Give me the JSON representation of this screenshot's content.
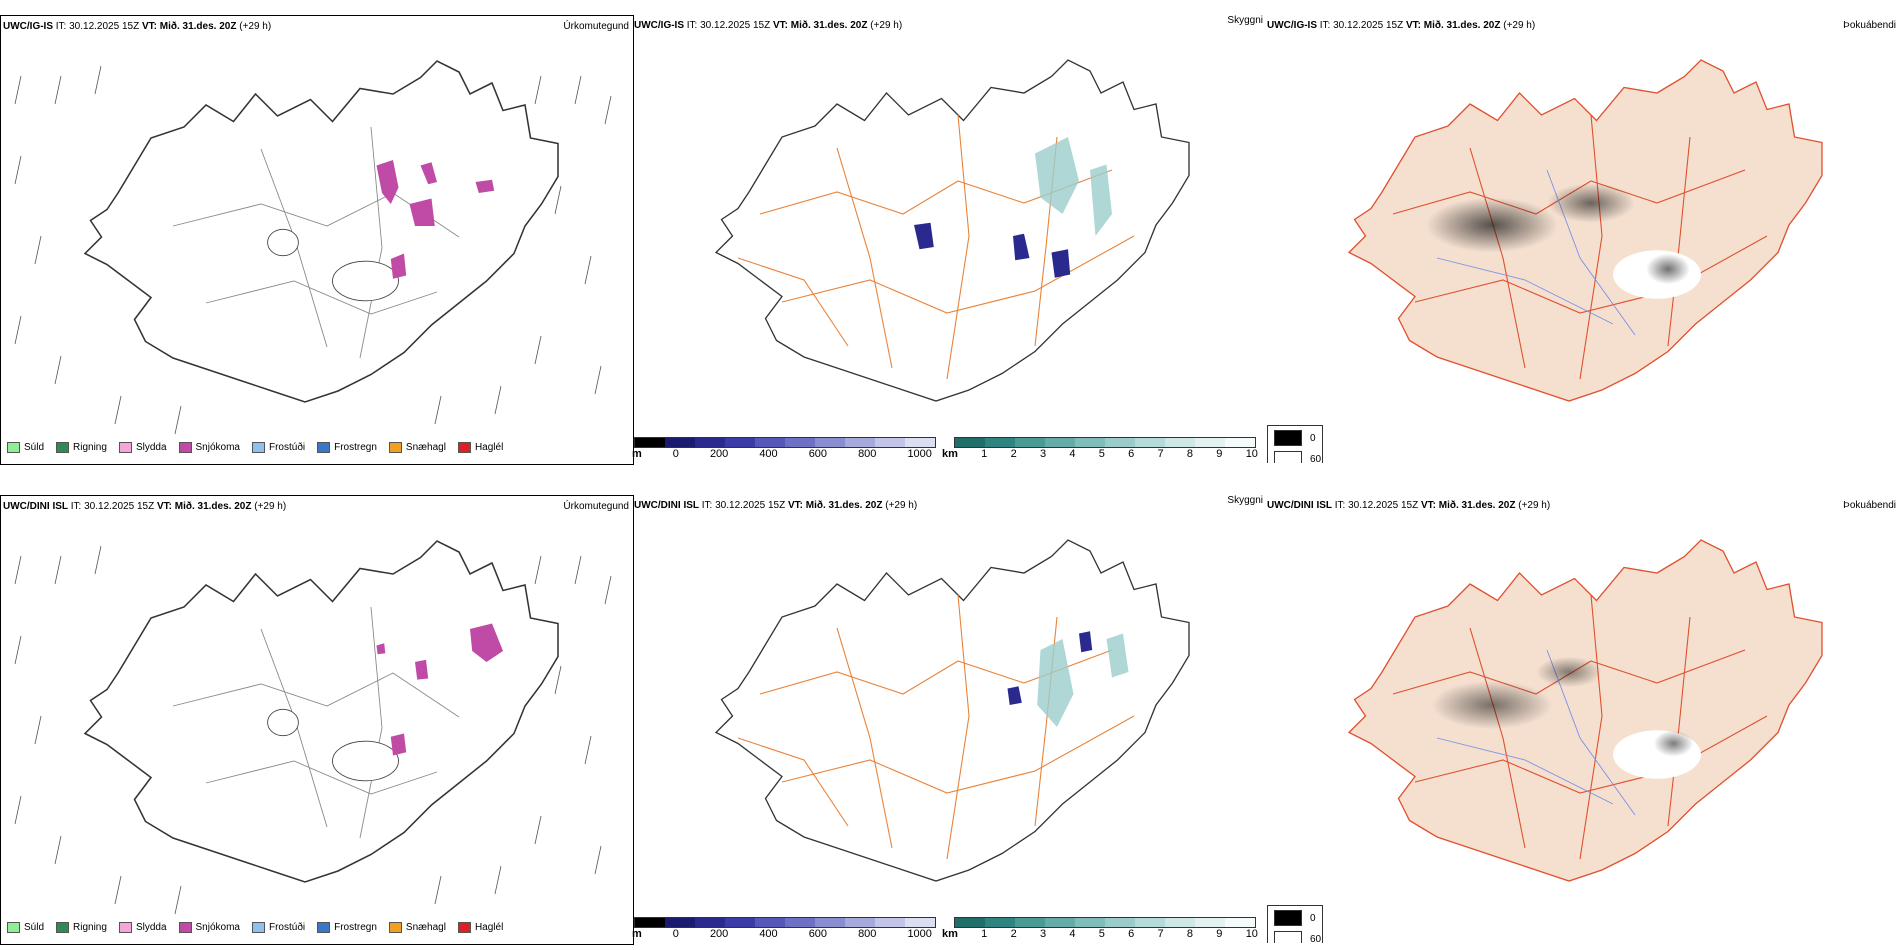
{
  "rows": [
    {
      "model": "UWC/IG-IS",
      "it_text": "IT: 30.12.2025 15Z",
      "vt_label": "VT:",
      "vt_value": "Mið. 31.des. 20Z",
      "lead": "(+29 h)",
      "titles": {
        "precip": "Úrkomutegund",
        "cloud": "Skyggni",
        "fog": "Þokuábendi"
      }
    },
    {
      "model": "UWC/DINI ISL",
      "it_text": "IT: 30.12.2025 15Z",
      "vt_label": "VT:",
      "vt_value": "Mið. 31.des. 20Z",
      "lead": "(+29 h)",
      "titles": {
        "precip": "Úrkomutegund",
        "cloud": "Skyggni",
        "fog": "Þokuábendi"
      }
    }
  ],
  "precip_legend": [
    {
      "label": "Súld",
      "color": "#90ee90"
    },
    {
      "label": "Rigning",
      "color": "#2e8b57"
    },
    {
      "label": "Slydda",
      "color": "#f4a6d7"
    },
    {
      "label": "Snjókoma",
      "color": "#c04ba6"
    },
    {
      "label": "Frostúði",
      "color": "#8ec1f0"
    },
    {
      "label": "Frostregn",
      "color": "#3a78c4"
    },
    {
      "label": "Snæhagl",
      "color": "#f0a020"
    },
    {
      "label": "Haglél",
      "color": "#e02020"
    }
  ],
  "ceiling_bar": {
    "unit": "m",
    "ticks": [
      "0",
      "200",
      "400",
      "600",
      "800",
      "1000"
    ],
    "colors": [
      "#000000",
      "#1a1a6e",
      "#2a2a8e",
      "#3a3ba6",
      "#5558b8",
      "#6e70c4",
      "#8a8dd0",
      "#a6a9dc",
      "#c2c4e8",
      "#dcdef2"
    ]
  },
  "vis_bar": {
    "unit": "km",
    "ticks": [
      "1",
      "2",
      "3",
      "4",
      "5",
      "6",
      "7",
      "8",
      "9",
      "10"
    ],
    "colors": [
      "#1f6e6a",
      "#2f8380",
      "#4a9a96",
      "#65aba8",
      "#80bcb9",
      "#9bccca",
      "#b5dbd9",
      "#cde8e7",
      "#e3f2f1",
      "#f5fbfb"
    ]
  },
  "fog_legend": [
    {
      "label": "0",
      "color": "#000000"
    },
    {
      "label": "60",
      "color": "#ffffff"
    }
  ],
  "colors": {
    "land_fog": "#f5e0d0",
    "roads": "#e8833a",
    "roads_red": "#e05030",
    "snow": "#c04ba6"
  }
}
